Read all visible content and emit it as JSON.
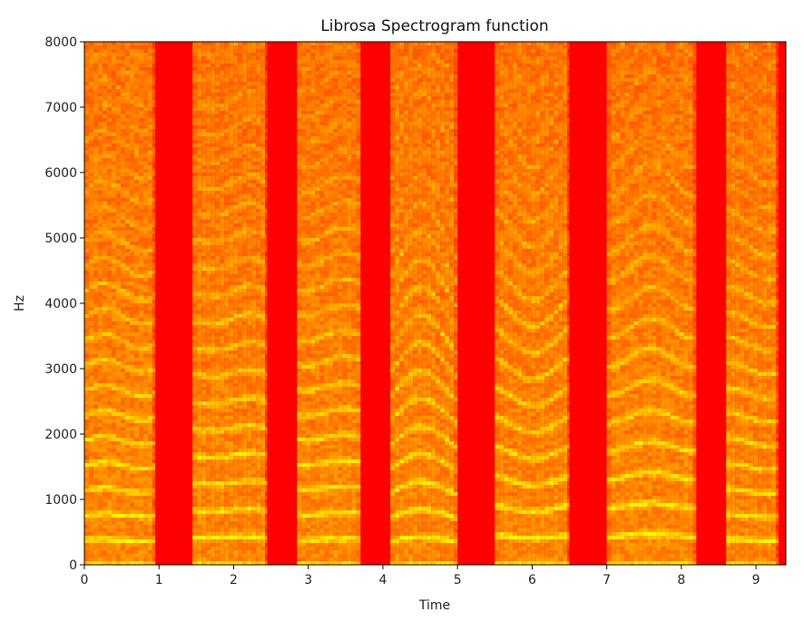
{
  "chart_data": {
    "type": "heatmap",
    "title": "Librosa Spectrogram function",
    "xlabel": "Time",
    "ylabel": "Hz",
    "xlim": [
      0,
      9.4
    ],
    "ylim": [
      0,
      8000
    ],
    "xticks": [
      "0",
      "1",
      "2",
      "3",
      "4",
      "5",
      "6",
      "7",
      "8",
      "9"
    ],
    "yticks": [
      "0",
      "1000",
      "2000",
      "3000",
      "4000",
      "5000",
      "6000",
      "7000",
      "8000"
    ],
    "colormap": "autumn",
    "colors": {
      "low": "#ff0000",
      "mid": "#ff8000",
      "high": "#ffff00"
    },
    "segments": [
      {
        "start": 0.0,
        "end": 0.95,
        "f0": 380,
        "glide": 0.0
      },
      {
        "start": 1.45,
        "end": 2.45,
        "f0": 405,
        "glide": 0.05
      },
      {
        "start": 2.85,
        "end": 3.7,
        "f0": 395,
        "glide": -0.03
      },
      {
        "start": 4.1,
        "end": 5.0,
        "f0": 370,
        "glide": 0.12
      },
      {
        "start": 5.5,
        "end": 6.5,
        "f0": 440,
        "glide": -0.05
      },
      {
        "start": 7.0,
        "end": 8.2,
        "f0": 445,
        "glide": 0.03
      },
      {
        "start": 8.6,
        "end": 9.3,
        "f0": 375,
        "glide": 0.0
      }
    ]
  }
}
